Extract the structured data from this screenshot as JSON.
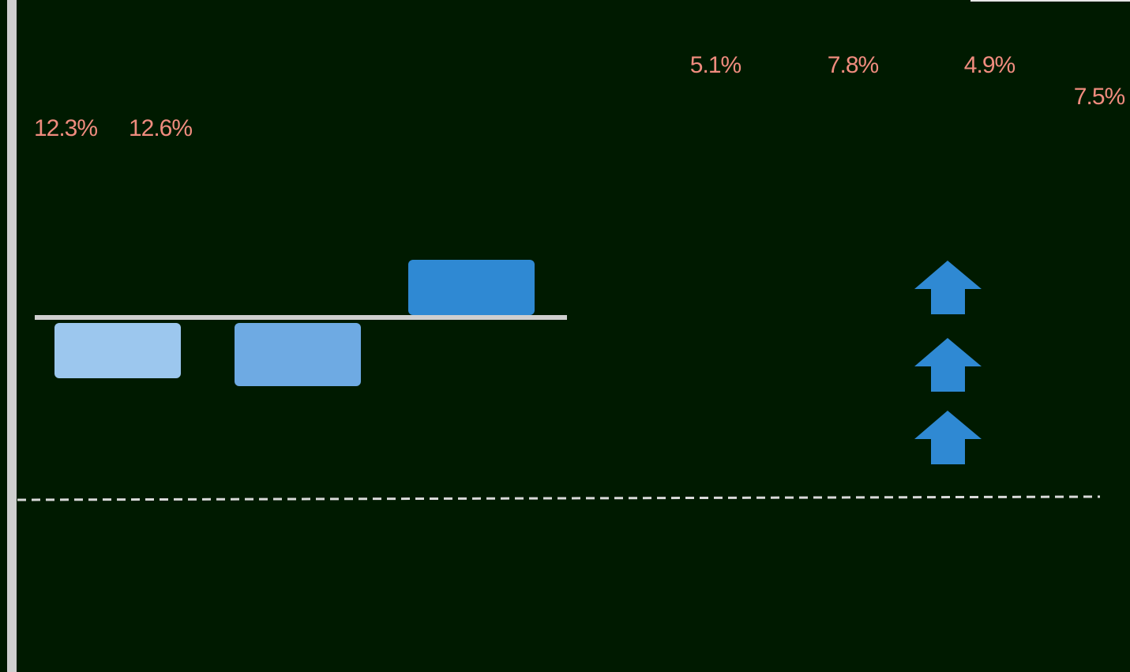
{
  "chart_data": {
    "type": "bar",
    "title": "",
    "xlabel": "",
    "ylabel": "",
    "categories": [
      "",
      "",
      "",
      "",
      "",
      "",
      ""
    ],
    "series": [
      {
        "values": [
          -1.4,
          -1.6,
          1.4,
          null,
          null,
          null,
          null
        ]
      }
    ],
    "value_labels": [
      "12.3%",
      "12.6%",
      "",
      "5.1%",
      "7.8%",
      "4.9%",
      "7.5%"
    ],
    "arrow_count": 3,
    "grid": false,
    "colors": {
      "background": "#001a00",
      "bar_1": "#9cc7ee",
      "bar_2": "#6eaae3",
      "bar_3": "#2f89d3",
      "arrow": "#2f89d3",
      "label": "#f08c7e",
      "axis": "#cfcfcf",
      "dashed_line": "#d9d9d9"
    }
  }
}
